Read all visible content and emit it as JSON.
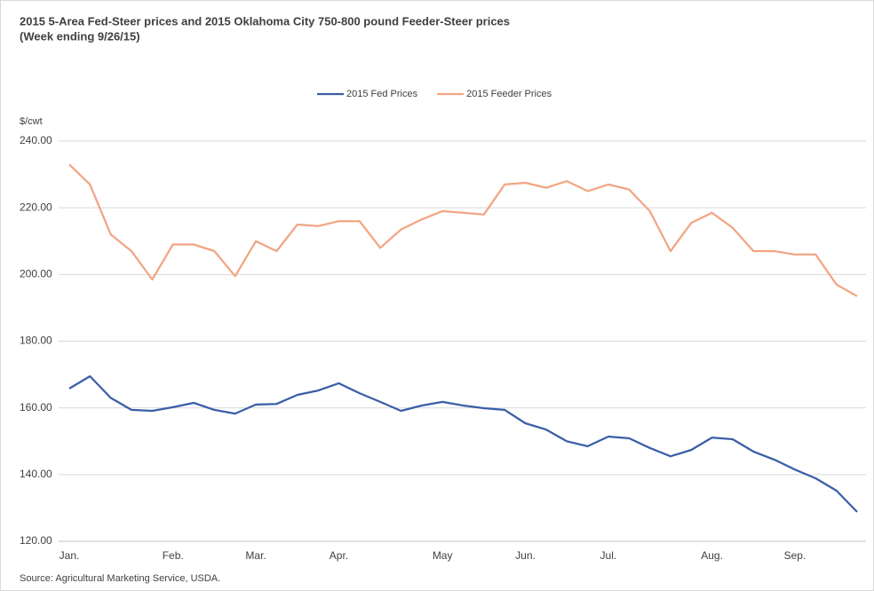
{
  "chart_data": {
    "type": "line",
    "title": "2015 5-Area Fed-Steer prices and 2015 Oklahoma City 750-800 pound Feeder-Steer prices",
    "subtitle": "(Week ending 9/26/15)",
    "y_label": "$/cwt",
    "source": "Source: Agricultural Marketing Service, USDA.",
    "categories": [
      "Jan.",
      null,
      null,
      null,
      null,
      "Feb.",
      null,
      null,
      null,
      "Mar.",
      null,
      null,
      null,
      "Apr.",
      null,
      null,
      null,
      null,
      "May",
      null,
      null,
      null,
      "Jun.",
      null,
      null,
      null,
      "Jul.",
      null,
      null,
      null,
      null,
      "Aug.",
      null,
      null,
      null,
      "Sep.",
      null,
      null,
      null
    ],
    "series": [
      {
        "name": "2015 Fed Prices",
        "color": "#3a5ea8",
        "values": [
          165.8,
          169.5,
          163,
          159.4,
          159.1,
          160.2,
          161.5,
          159.4,
          158.3,
          161,
          161.2,
          163.9,
          165.2,
          167.4,
          164.4,
          161.8,
          159.1,
          160.7,
          161.8,
          160.7,
          159.9,
          159.4,
          155.4,
          153.5,
          150,
          148.5,
          151.4,
          150.9,
          148,
          145.5,
          147.4,
          151.1,
          150.6,
          146.9,
          144.5,
          141.5,
          138.9,
          135.2,
          128.8
        ]
      },
      {
        "name": "2015 Feeder Prices",
        "color": "#f2a583",
        "values": [
          233,
          227,
          212,
          207,
          198.5,
          209,
          209,
          207,
          199.5,
          210,
          207,
          215,
          214.5,
          216,
          216,
          208,
          213.5,
          216.5,
          219,
          218.5,
          218,
          227,
          227.5,
          226,
          228,
          225,
          227,
          225.5,
          219,
          207,
          215.5,
          218.5,
          214,
          207,
          207,
          206,
          206,
          197,
          193.5
        ]
      }
    ],
    "ylim": [
      120,
      240
    ],
    "yticks": [
      {
        "value": 120,
        "label": "120.00"
      },
      {
        "value": 140,
        "label": "140.00"
      },
      {
        "value": 160,
        "label": "160.00"
      },
      {
        "value": 180,
        "label": "180.00"
      },
      {
        "value": 200,
        "label": "200.00"
      },
      {
        "value": 220,
        "label": "220.00"
      },
      {
        "value": 240,
        "label": "240.00"
      }
    ],
    "grid": true,
    "legend": "top"
  }
}
